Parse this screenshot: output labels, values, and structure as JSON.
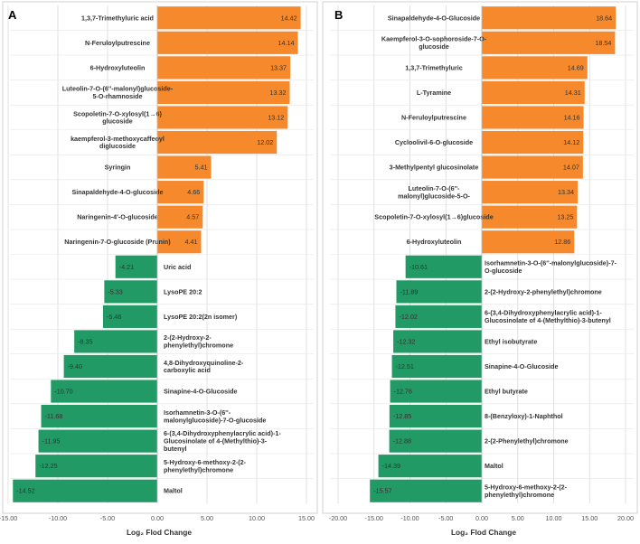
{
  "colors": {
    "positive": "#F5892B",
    "negative": "#219A66",
    "grid": "#D9D9D9",
    "text": "#333333"
  },
  "chart_data": [
    {
      "type": "bar",
      "orientation": "horizontal",
      "panel_label": "A",
      "xlabel": "Log₂ Flod Change",
      "xlim": [
        -15,
        15
      ],
      "xticks": [
        "-15.00",
        "-10.00",
        "-5.00",
        "0.00",
        "5.00",
        "10.00",
        "15.00"
      ],
      "categories": [
        "1,3,7-Trimethyluric acid",
        "N-Feruloylputrescine",
        "6-Hydroxyluteolin",
        "Luteolin-7-O-(6''-malonyl)glucoside-5-O-rhamnoside",
        "Scopoletin-7-O-xylosyl(1→6)glucoside",
        "kaempferol-3-methoxycaffeoyl diglucoside",
        "Syringin",
        "Sinapaldehyde-4-O-glucoside",
        "Naringenin-4'-O-glucoside",
        "Naringenin-7-O-glucoside (Prunin)",
        "Uric acid",
        "LysoPE 20:2",
        "LysoPE 20:2(2n isomer)",
        "2-(2-Hydroxy-2-phenylethyl)chromone",
        "4,8-Dihydroxyquinoline-2-carboxylic acid",
        "Sinapine-4-O-Glucoside",
        "Isorhamnetin-3-O-(6''-malonylglucoside)-7-O-glucoside",
        "6-(3,4-Dihydroxyphenylacrylic acid)-1-Glucosinolate of 4-(Methylthio)-3-butenyl",
        "5-Hydroxy-6-methoxy-2-(2-phenylethyl)chromone",
        "Maltol"
      ],
      "label_lines": [
        [
          "1,3,7-Trimethyluric acid"
        ],
        [
          "N-Feruloylputrescine"
        ],
        [
          "6-Hydroxyluteolin"
        ],
        [
          "Luteolin-7-O-(6''-malonyl)glucoside-",
          "5-O-rhamnoside"
        ],
        [
          "Scopoletin-7-O-xylosyl(1→6)",
          "glucoside"
        ],
        [
          "kaempferol-3-methoxycaffeoyl",
          "diglucoside"
        ],
        [
          "Syringin"
        ],
        [
          "Sinapaldehyde-4-O-glucoside"
        ],
        [
          "Naringenin-4'-O-glucoside"
        ],
        [
          "Naringenin-7-O-glucoside (Prunin)"
        ],
        [
          "Uric acid"
        ],
        [
          "LysoPE 20:2"
        ],
        [
          "LysoPE 20:2(2n isomer)"
        ],
        [
          "2-(2-Hydroxy-2-",
          "phenylethyl)chromone"
        ],
        [
          "4,8-Dihydroxyquinoline-2-",
          "carboxylic acid"
        ],
        [
          "Sinapine-4-O-Glucoside"
        ],
        [
          "Isorhamnetin-3-O-(6''-",
          "malonylglucoside)-7-O-glucoside"
        ],
        [
          "6-(3,4-Dihydroxyphenylacrylic acid)-1-",
          "Glucosinolate of 4-(Methylthio)-3-",
          "butenyl"
        ],
        [
          "5-Hydroxy-6-methoxy-2-(2-",
          "phenylethyl)chromone"
        ],
        [
          "Maltol"
        ]
      ],
      "values": [
        14.42,
        14.14,
        13.37,
        13.32,
        13.12,
        12.02,
        5.41,
        4.66,
        4.57,
        4.41,
        -4.21,
        -5.33,
        -5.46,
        -8.35,
        -9.4,
        -10.7,
        -11.68,
        -11.95,
        -12.25,
        -14.52
      ],
      "value_labels": [
        "14.42",
        "14.14",
        "13.37",
        "13.32",
        "13.12",
        "12.02",
        "5.41",
        "4.66",
        "4.57",
        "4.41",
        "-4.21",
        "-5.33",
        "-5.46",
        "-8.35",
        "-9.40",
        "-10.70",
        "-11.68",
        "-11.95",
        "-12.25",
        "-14.52"
      ]
    },
    {
      "type": "bar",
      "orientation": "horizontal",
      "panel_label": "B",
      "xlabel": "Log₂ Flod Change",
      "xlim": [
        -20,
        20
      ],
      "xticks": [
        "-20.00",
        "-15.00",
        "-10.00",
        "-5.00",
        "0.00",
        "5.00",
        "10.00",
        "15.00",
        "20.00"
      ],
      "categories": [
        "Sinapaldehyde-4-O-Glucoside",
        "Kaempferol-3-O-sophoroside-7-O-glucoside",
        "1,3,7-Trimethyluric",
        "L-Tyramine",
        "N-Feruloylputrescine",
        "Cycloolivil-6-O-glucoside",
        "3-Methylpentyl glucosinolate",
        "Luteolin-7-O-(6''-malonyl)glucoside-5-O-",
        "Scopoletin-7-O-xylosyl(1→6)glucoside",
        "6-Hydroxyluteolin",
        "Isorhamnetin-3-O-(6''-malonylglucoside)-7-O-glucoside",
        "2-(2-Hydroxy-2-phenylethyl)chromone",
        "6-(3,4-Dihydroxyphenylacrylic acid)-1-Glucosinolate of 4-(Methylthio)-3-butenyl",
        "Ethyl isobutyrate",
        "Sinapine-4-O-Glucoside",
        "Ethyl butyrate",
        "8-(Benzyloxy)-1-Naphthol",
        "2-(2-Phenylethyl)chromone",
        "Maltol",
        "5-Hydroxy-6-methoxy-2-(2-phenylethyl)chromone"
      ],
      "label_lines": [
        [
          "Sinapaldehyde-4-O-Glucoside"
        ],
        [
          "Kaempferol-3-O-sophoroside-7-O-",
          "glucoside"
        ],
        [
          "1,3,7-Trimethyluric"
        ],
        [
          "L-Tyramine"
        ],
        [
          "N-Feruloylputrescine"
        ],
        [
          "Cycloolivil-6-O-glucoside"
        ],
        [
          "3-Methylpentyl glucosinolate"
        ],
        [
          "Luteolin-7-O-(6''-",
          "malonyl)glucoside-5-O-"
        ],
        [
          "Scopoletin-7-O-xylosyl(1→6)glucoside"
        ],
        [
          "6-Hydroxyluteolin"
        ],
        [
          "Isorhamnetin-3-O-(6''-malonylglucoside)-7-",
          "O-glucoside"
        ],
        [
          "2-(2-Hydroxy-2-phenylethyl)chromone"
        ],
        [
          "6-(3,4-Dihydroxyphenylacrylic acid)-1-",
          "Glucosinolate of 4-(Methylthio)-3-butenyl"
        ],
        [
          "Ethyl isobutyrate"
        ],
        [
          "Sinapine-4-O-Glucoside"
        ],
        [
          "Ethyl butyrate"
        ],
        [
          "8-(Benzyloxy)-1-Naphthol"
        ],
        [
          "2-(2-Phenylethyl)chromone"
        ],
        [
          "Maltol"
        ],
        [
          "5-Hydroxy-6-methoxy-2-(2-",
          "phenylethyl)chromone"
        ]
      ],
      "values": [
        18.64,
        18.54,
        14.69,
        14.31,
        14.16,
        14.12,
        14.07,
        13.34,
        13.25,
        12.86,
        -10.61,
        -11.89,
        -12.02,
        -12.32,
        -12.51,
        -12.76,
        -12.85,
        -12.88,
        -14.39,
        -15.57
      ],
      "value_labels": [
        "18.64",
        "18.54",
        "14.69",
        "14.31",
        "14.16",
        "14.12",
        "14.07",
        "13.34",
        "13.25",
        "12.86",
        "-10.61",
        "-11.89",
        "-12.02",
        "-12.32",
        "-12.51",
        "-12.76",
        "-12.85",
        "-12.88",
        "-14.39",
        "-15.57"
      ]
    }
  ]
}
